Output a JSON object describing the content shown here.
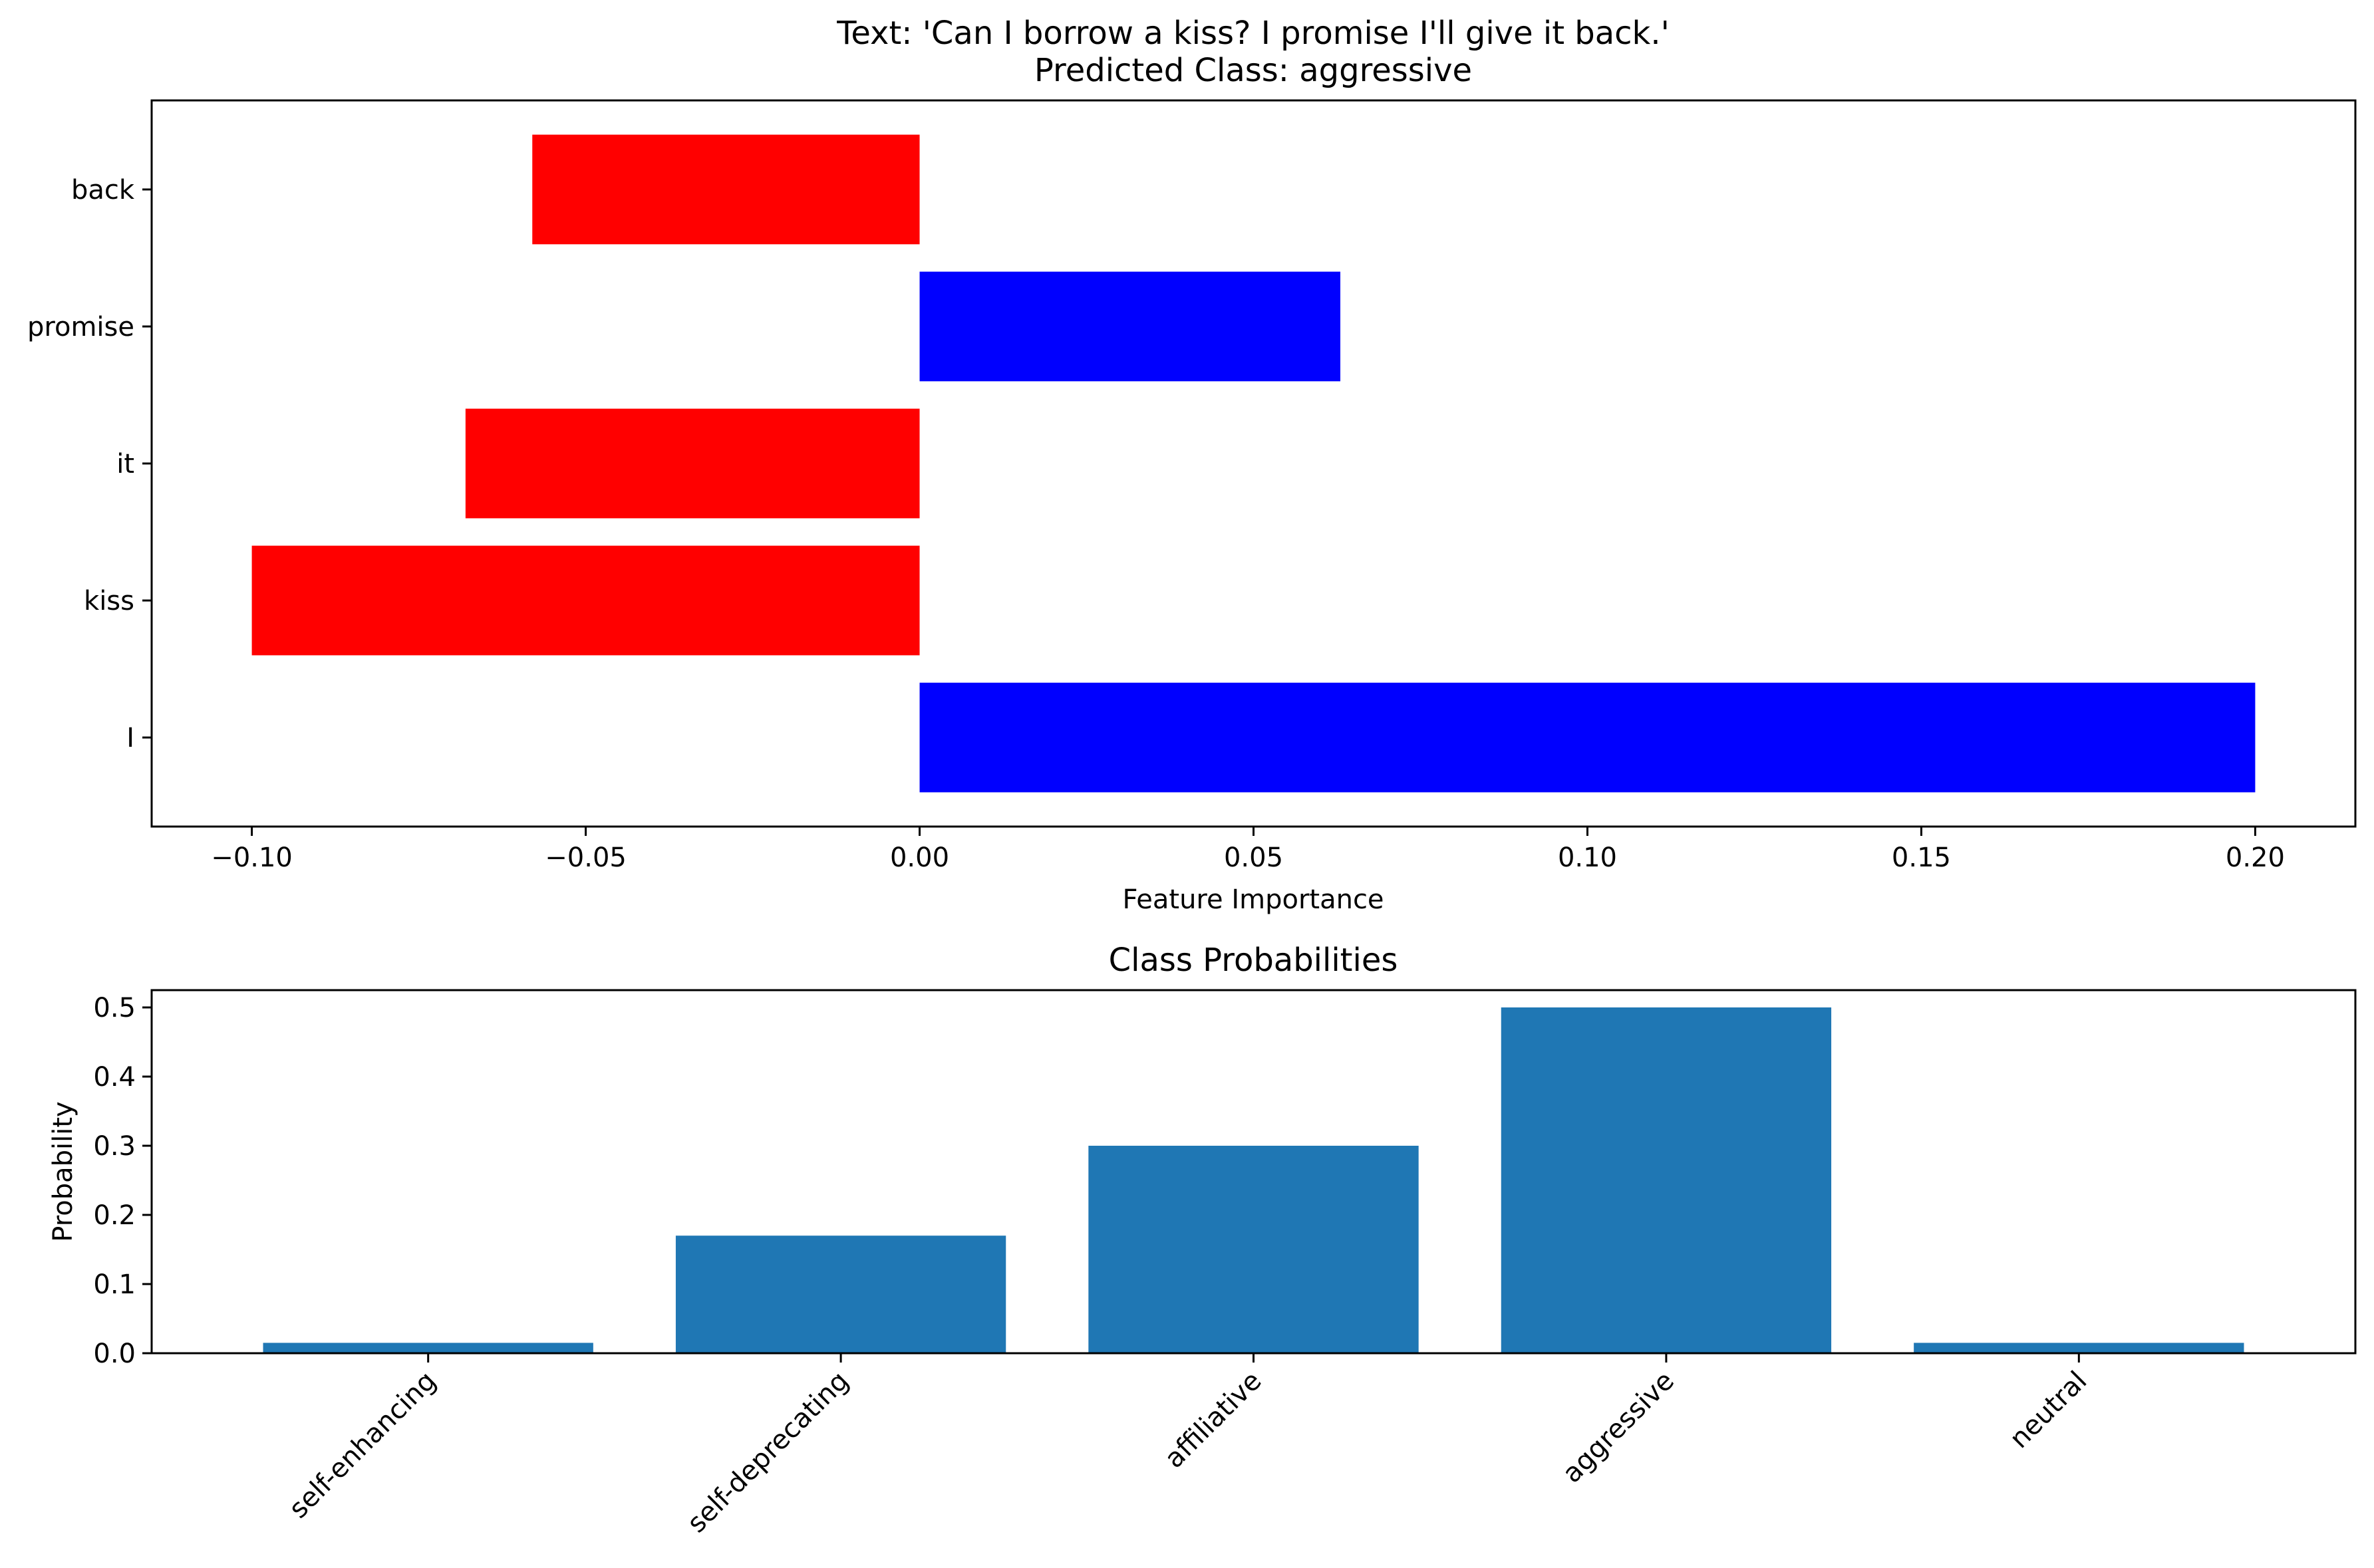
{
  "chart_data": [
    {
      "type": "bar",
      "orientation": "horizontal",
      "title_lines": [
        "Text: 'Can I borrow a kiss? I promise I'll give it back.'",
        "Predicted Class: aggressive"
      ],
      "xlabel": "Feature Importance",
      "ylabel": "",
      "categories": [
        "back",
        "promise",
        "it",
        "kiss",
        "I"
      ],
      "values": [
        -0.058,
        0.063,
        -0.068,
        -0.1,
        0.2
      ],
      "colors": {
        "positive": "#0000ff",
        "negative": "#ff0000"
      },
      "xlim": [
        -0.115,
        0.215
      ],
      "xticks": [
        -0.1,
        -0.05,
        0.0,
        0.05,
        0.1,
        0.15,
        0.2
      ],
      "xtick_labels": [
        "−0.10",
        "−0.05",
        "0.00",
        "0.05",
        "0.10",
        "0.15",
        "0.20"
      ],
      "grid": false,
      "legend": "none"
    },
    {
      "type": "bar",
      "orientation": "vertical",
      "title": "Class Probabilities",
      "xlabel": "",
      "ylabel": "Probability",
      "categories": [
        "self-enhancing",
        "self-deprecating",
        "affiliative",
        "aggressive",
        "neutral"
      ],
      "values": [
        0.015,
        0.17,
        0.3,
        0.5,
        0.015
      ],
      "color": "#1f77b4",
      "ylim": [
        0,
        0.525
      ],
      "yticks": [
        0.0,
        0.1,
        0.2,
        0.3,
        0.4,
        0.5
      ],
      "ytick_labels": [
        "0.0",
        "0.1",
        "0.2",
        "0.3",
        "0.4",
        "0.5"
      ],
      "tick_label_rotation": 45,
      "grid": false,
      "legend": "none"
    }
  ]
}
